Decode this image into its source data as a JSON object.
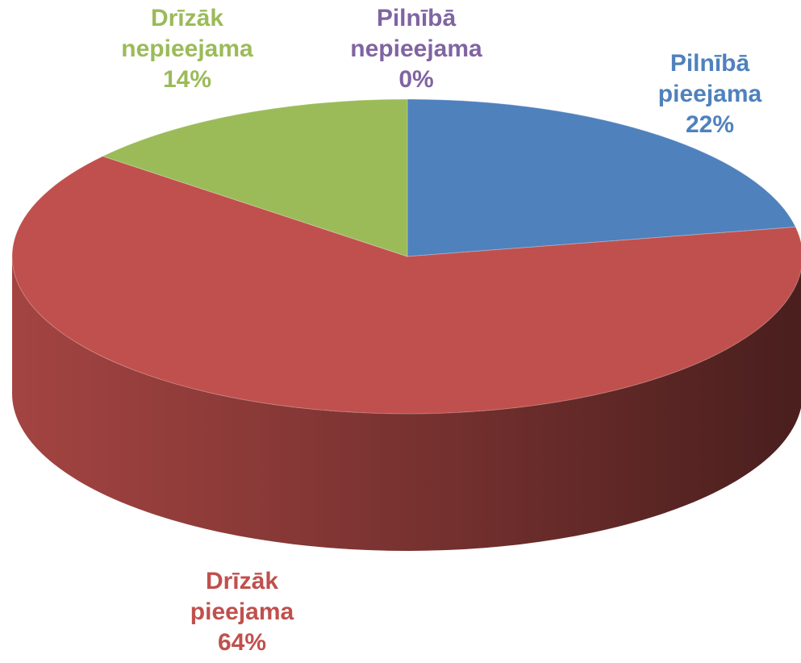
{
  "chart_data": {
    "type": "pie",
    "categories": [
      "Pilnībā pieejama",
      "Drīzāk pieejama",
      "Drīzāk nepieejama",
      "Pilnībā nepieejama"
    ],
    "values": [
      22,
      64,
      14,
      0
    ],
    "value_labels": [
      "22%",
      "64%",
      "14%",
      "0%"
    ],
    "colors": [
      "#4f81bd",
      "#c0504d",
      "#9bbb59",
      "#8064a2"
    ]
  }
}
